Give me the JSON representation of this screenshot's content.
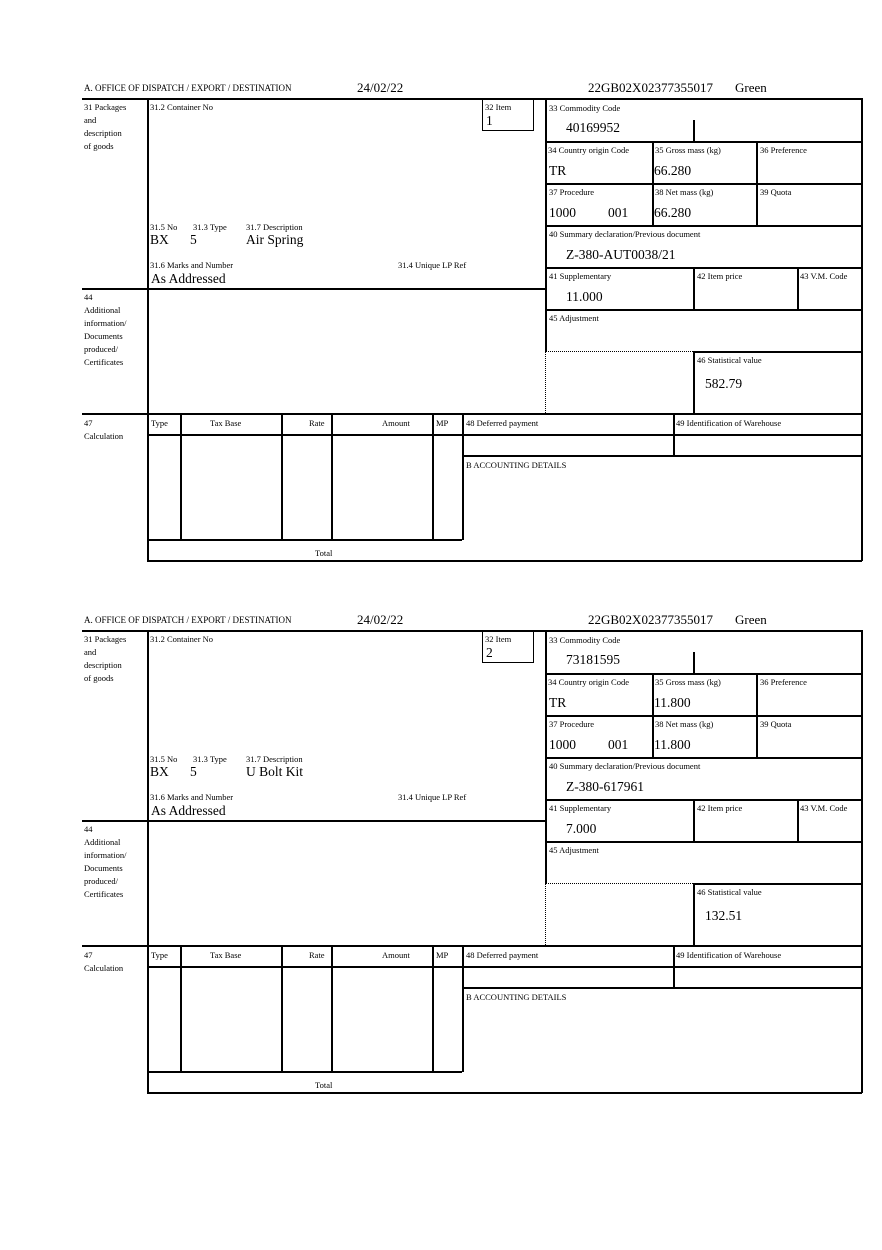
{
  "labels": {
    "office": "A. OFFICE OF DISPATCH / EXPORT / DESTINATION",
    "packages": [
      "31 Packages",
      "and",
      "description",
      "of goods"
    ],
    "container": "31.2 Container No",
    "item": "32 Item",
    "no": "31.5 No",
    "type": "31.3 Type",
    "description": "31.7 Description",
    "marks": "31.6 Marks and Number",
    "unique_lp": "31.4 Unique LP Ref",
    "additional": [
      "44",
      "Additional",
      "information/",
      "Documents",
      "produced/",
      "Certificates"
    ],
    "commodity": "33 Commodity Code",
    "country": "34 Country origin Code",
    "gross": "35 Gross mass (kg)",
    "preference": "36 Preference",
    "procedure": "37 Procedure",
    "net": "38 Net mass (kg)",
    "quota": "39 Quota",
    "summary": "40 Summary declaration/Previous document",
    "supplementary": "41 Supplementary",
    "item_price": "42 Item price",
    "vm_code": "43 V.M. Code",
    "adjustment": "45 Adjustment",
    "statistical": "46 Statistical value",
    "calculation": [
      "47",
      "Calculation"
    ],
    "calc_cols": [
      "Type",
      "Tax Base",
      "Rate",
      "Amount",
      "MP"
    ],
    "total": "Total",
    "deferred": "48 Deferred payment",
    "warehouse": "49 Identification of Warehouse",
    "accounting": "B ACCOUNTING DETAILS"
  },
  "items": [
    {
      "date": "24/02/22",
      "reference": "22GB02X02377355017",
      "route": "Green",
      "item_no": "1",
      "pkg_no": "BX",
      "pkg_type": "5",
      "description": "Air Spring",
      "marks": "As Addressed",
      "commodity_code": "40169952",
      "country": "TR",
      "gross_mass": "66.280",
      "procedure": "1000",
      "procedure_add": "001",
      "net_mass": "66.280",
      "summary_doc": "Z-380-AUT0038/21",
      "supplementary": "11.000",
      "statistical_value": "582.79"
    },
    {
      "date": "24/02/22",
      "reference": "22GB02X02377355017",
      "route": "Green",
      "item_no": "2",
      "pkg_no": "BX",
      "pkg_type": "5",
      "description": "U Bolt Kit",
      "marks": "As Addressed",
      "commodity_code": "73181595",
      "country": "TR",
      "gross_mass": "11.800",
      "procedure": "1000",
      "procedure_add": "001",
      "net_mass": "11.800",
      "summary_doc": "Z-380-617961",
      "supplementary": "7.000",
      "statistical_value": "132.51"
    }
  ]
}
